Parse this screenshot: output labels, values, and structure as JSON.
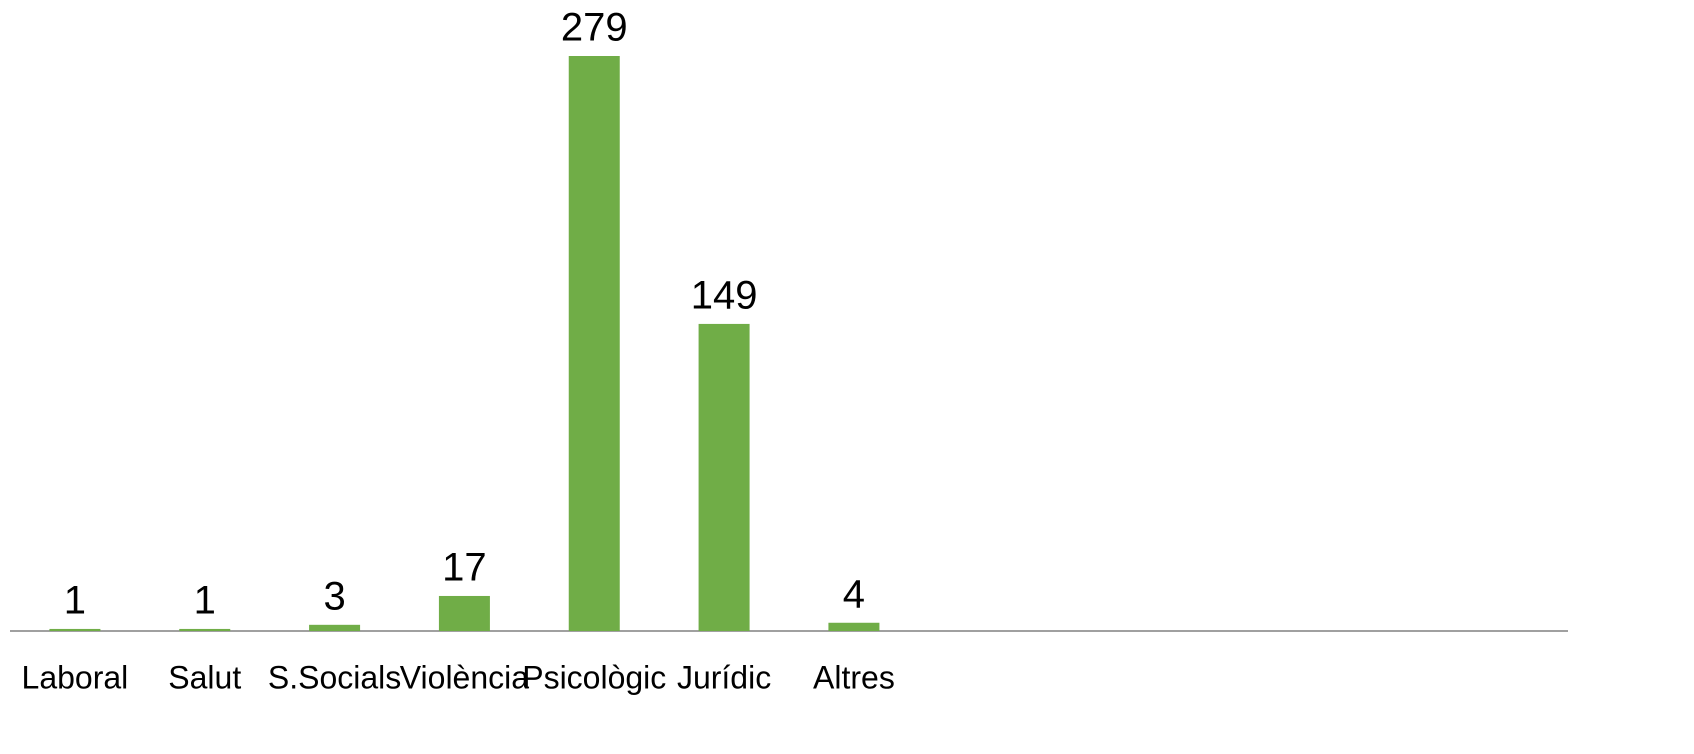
{
  "chart_data": {
    "type": "bar",
    "categories": [
      "Laboral",
      "Salut",
      "S.Socials",
      "Violència",
      "Psicològic",
      "Jurídic",
      "Altres",
      null,
      null,
      null,
      null,
      null
    ],
    "values": [
      1,
      1,
      3,
      17,
      279,
      149,
      4,
      null,
      null,
      null,
      null,
      null
    ],
    "color": "#70ad47"
  }
}
